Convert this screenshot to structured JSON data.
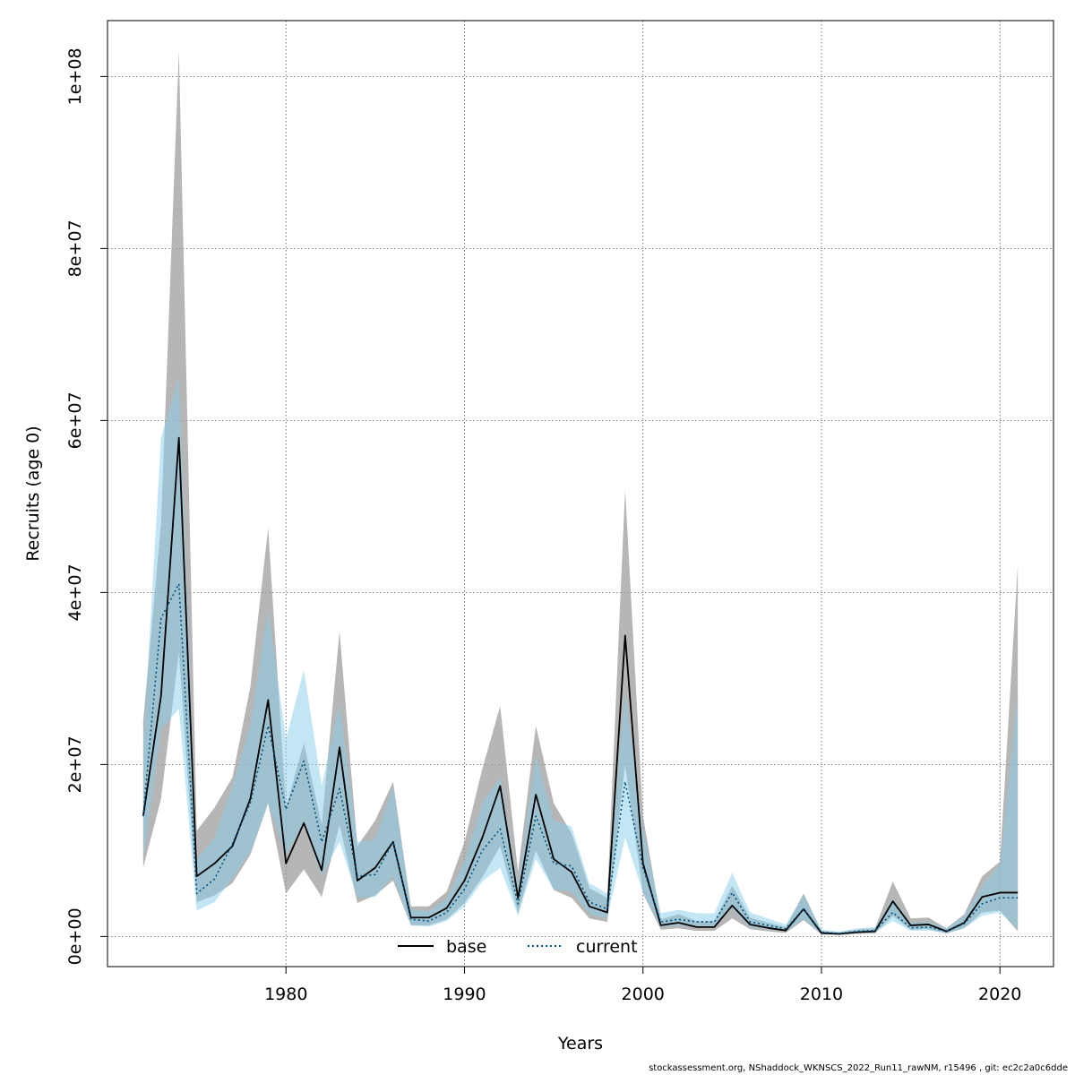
{
  "chart_data": {
    "type": "line",
    "xlabel": "Years",
    "ylabel": "Recruits (age 0)",
    "xlim": [
      1970,
      2023
    ],
    "ylim": [
      -3500000,
      106500000
    ],
    "xticks": [
      1980,
      1990,
      2000,
      2010,
      2020
    ],
    "yticks": [
      0,
      20000000,
      40000000,
      60000000,
      80000000,
      100000000
    ],
    "ytick_labels": [
      "0e+00",
      "2e+07",
      "4e+07",
      "6e+07",
      "8e+07",
      "1e+08"
    ],
    "grid": true,
    "legend_position": "bottom-center",
    "colors": {
      "base_line": "#000000",
      "current_line": "#00507a",
      "base_band": "#9a9a9a",
      "current_band": "#87ceeb"
    },
    "x": [
      1972,
      1973,
      1974,
      1975,
      1976,
      1977,
      1978,
      1979,
      1980,
      1981,
      1982,
      1983,
      1984,
      1985,
      1986,
      1987,
      1988,
      1989,
      1990,
      1991,
      1992,
      1993,
      1994,
      1995,
      1996,
      1997,
      1998,
      1999,
      2000,
      2001,
      2002,
      2003,
      2004,
      2005,
      2006,
      2007,
      2008,
      2009,
      2010,
      2011,
      2012,
      2013,
      2014,
      2015,
      2016,
      2017,
      2018,
      2019,
      2020,
      2021
    ],
    "series": [
      {
        "name": "base",
        "style": "solid",
        "values": [
          14000000,
          28000000,
          58000000,
          7000000,
          8500000,
          10500000,
          16000000,
          27500000,
          8500000,
          13200000,
          7700000,
          22000000,
          6500000,
          8000000,
          11000000,
          2200000,
          2200000,
          3300000,
          6500000,
          11500000,
          17500000,
          4500000,
          16500000,
          9000000,
          7500000,
          3500000,
          2800000,
          35000000,
          8500000,
          1300000,
          1600000,
          1100000,
          1100000,
          3600000,
          1400000,
          1000000,
          700000,
          3200000,
          400000,
          300000,
          500000,
          600000,
          4100000,
          1300000,
          1400000,
          600000,
          1600000,
          4600000,
          5100000,
          5100000
        ],
        "lower": [
          8000000,
          16000000,
          33000000,
          4000000,
          4800000,
          6200000,
          9500000,
          15500000,
          5000000,
          7800000,
          4600000,
          13000000,
          3900000,
          4800000,
          6500000,
          1300000,
          1300000,
          2000000,
          3900000,
          6900000,
          10500000,
          2700000,
          10000000,
          5400000,
          4500000,
          2100000,
          1700000,
          20000000,
          5000000,
          800000,
          950000,
          650000,
          650000,
          2100000,
          850000,
          600000,
          420000,
          1900000,
          240000,
          180000,
          300000,
          360000,
          2400000,
          780000,
          850000,
          360000,
          960000,
          2800000,
          3000000,
          600000
        ],
        "upper": [
          25000000,
          48000000,
          103000000,
          12300000,
          15000000,
          18500000,
          29000000,
          47500000,
          15000000,
          22500000,
          13000000,
          35500000,
          10500000,
          13500000,
          18000000,
          3500000,
          3500000,
          5200000,
          11000000,
          19500000,
          26800000,
          7500000,
          24500000,
          15500000,
          12000000,
          5600000,
          4500000,
          52000000,
          14000000,
          2000000,
          2600000,
          1800000,
          1800000,
          5900000,
          2200000,
          1600000,
          1100000,
          5000000,
          650000,
          480000,
          800000,
          950000,
          6400000,
          2100000,
          2200000,
          950000,
          2600000,
          7000000,
          8700000,
          43200000
        ]
      },
      {
        "name": "current",
        "style": "dotted",
        "values": [
          14000000,
          37000000,
          41000000,
          5000000,
          6700000,
          10800000,
          15500000,
          24500000,
          14800000,
          20400000,
          11000000,
          17200000,
          7000000,
          7200000,
          11000000,
          2000000,
          1800000,
          2800000,
          5500000,
          10000000,
          12500000,
          3800000,
          14000000,
          8500000,
          8200000,
          4000000,
          3200000,
          18000000,
          8000000,
          1700000,
          2000000,
          1700000,
          1700000,
          5100000,
          1700000,
          1300000,
          900000,
          3200000,
          500000,
          350000,
          600000,
          700000,
          2800000,
          1000000,
          1100000,
          600000,
          1500000,
          3800000,
          4500000,
          4500000
        ],
        "lower": [
          9000000,
          24000000,
          26500000,
          3000000,
          4000000,
          6800000,
          9800000,
          15500000,
          9500000,
          13000000,
          7000000,
          11000000,
          4500000,
          4600000,
          7000000,
          1300000,
          1150000,
          1800000,
          3500000,
          6400000,
          8000000,
          2400000,
          9000000,
          5500000,
          5200000,
          2600000,
          2100000,
          11500000,
          5100000,
          1100000,
          1300000,
          1100000,
          1100000,
          3300000,
          1100000,
          850000,
          600000,
          2000000,
          320000,
          230000,
          380000,
          450000,
          1800000,
          650000,
          700000,
          380000,
          950000,
          2400000,
          2800000,
          900000
        ],
        "upper": [
          22000000,
          58000000,
          65000000,
          9000000,
          11500000,
          17500000,
          24500000,
          38000000,
          23000000,
          31000000,
          17500000,
          27000000,
          11000000,
          11300000,
          17500000,
          3200000,
          2900000,
          4400000,
          8700000,
          15500000,
          18500000,
          5900000,
          21000000,
          13500000,
          12800000,
          6200000,
          5000000,
          28500000,
          12500000,
          2700000,
          3100000,
          2700000,
          2700000,
          7400000,
          2800000,
          2100000,
          1400000,
          4800000,
          800000,
          560000,
          950000,
          1100000,
          4400000,
          1600000,
          1700000,
          950000,
          2400000,
          5900000,
          8300000,
          28000000
        ]
      }
    ]
  },
  "legend": {
    "base": "base",
    "current": "current"
  },
  "footer": "stockassessment.org, NShaddock_WKNSCS_2022_Run11_rawNM, r15496 , git: ec2c2a0c6dde"
}
